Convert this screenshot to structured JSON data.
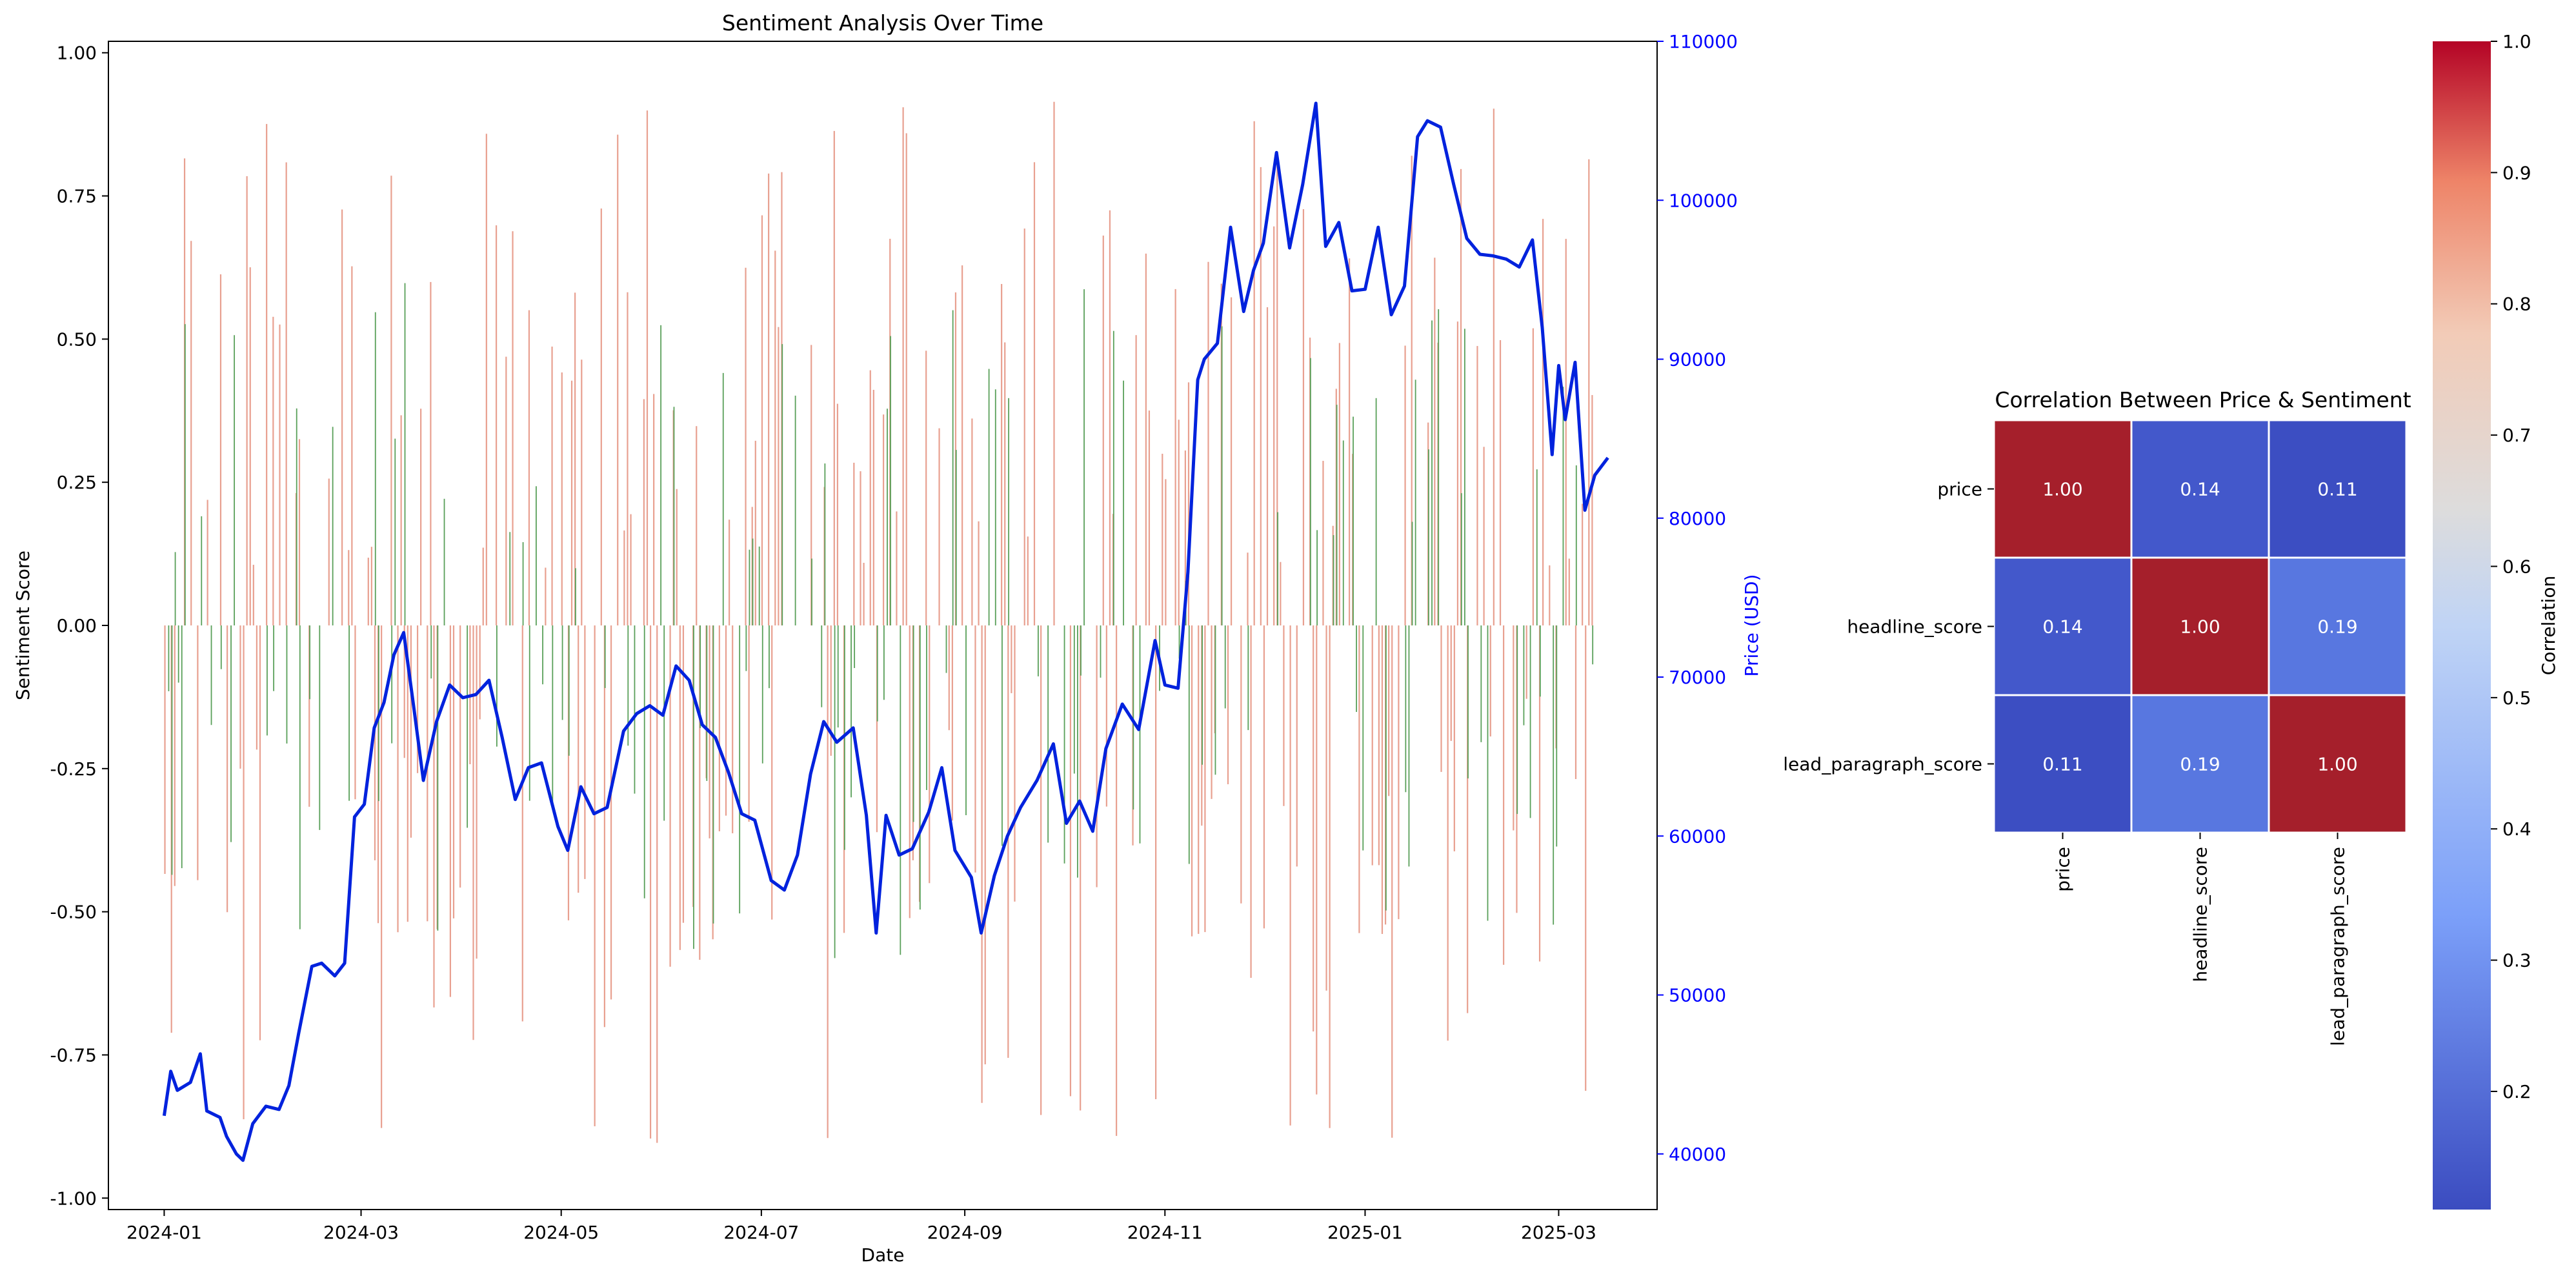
{
  "chart_data": [
    {
      "type": "bar+line",
      "title": "Sentiment Analysis Over Time",
      "xlabel": "Date",
      "ylabel": "Sentiment Score",
      "y2label": "Price (USD)",
      "ylim": [
        -1.02,
        1.02
      ],
      "y2lim": [
        36500,
        110000
      ],
      "x_range": [
        "2023-12-15",
        "2025-03-31"
      ],
      "x_ticks": [
        "2024-01",
        "2024-03",
        "2024-05",
        "2024-07",
        "2024-09",
        "2024-11",
        "2025-01",
        "2025-03"
      ],
      "y_ticks": [
        "-1.00",
        "-0.75",
        "-0.50",
        "-0.25",
        "0.00",
        "0.25",
        "0.50",
        "0.75",
        "1.00"
      ],
      "y2_ticks": [
        "40000",
        "50000",
        "60000",
        "70000",
        "80000",
        "90000",
        "100000",
        "110000"
      ],
      "colors": {
        "headline_bars": "#e8a090",
        "lead_bars": "#5aa05a",
        "price_line": "#0022dd",
        "right_axis": "#0000ff"
      },
      "series": [
        {
          "name": "price",
          "kind": "line",
          "points": [
            [
              "2024-01-01",
              42400
            ],
            [
              "2024-01-03",
              45200
            ],
            [
              "2024-01-05",
              44000
            ],
            [
              "2024-01-09",
              44500
            ],
            [
              "2024-01-12",
              46300
            ],
            [
              "2024-01-14",
              42700
            ],
            [
              "2024-01-18",
              42300
            ],
            [
              "2024-01-20",
              41100
            ],
            [
              "2024-01-23",
              40000
            ],
            [
              "2024-01-25",
              39600
            ],
            [
              "2024-01-28",
              41900
            ],
            [
              "2024-02-01",
              43000
            ],
            [
              "2024-02-05",
              42800
            ],
            [
              "2024-02-08",
              44300
            ],
            [
              "2024-02-11",
              47600
            ],
            [
              "2024-02-15",
              51800
            ],
            [
              "2024-02-18",
              52000
            ],
            [
              "2024-02-22",
              51200
            ],
            [
              "2024-02-25",
              52000
            ],
            [
              "2024-02-28",
              61200
            ],
            [
              "2024-03-02",
              62000
            ],
            [
              "2024-03-05",
              66800
            ],
            [
              "2024-03-08",
              68400
            ],
            [
              "2024-03-11",
              71400
            ],
            [
              "2024-03-14",
              72800
            ],
            [
              "2024-03-17",
              68200
            ],
            [
              "2024-03-20",
              63500
            ],
            [
              "2024-03-24",
              67200
            ],
            [
              "2024-03-28",
              69500
            ],
            [
              "2024-04-01",
              68700
            ],
            [
              "2024-04-05",
              68900
            ],
            [
              "2024-04-09",
              69800
            ],
            [
              "2024-04-13",
              66200
            ],
            [
              "2024-04-17",
              62300
            ],
            [
              "2024-04-21",
              64300
            ],
            [
              "2024-04-25",
              64600
            ],
            [
              "2024-04-30",
              60600
            ],
            [
              "2024-05-03",
              59100
            ],
            [
              "2024-05-07",
              63100
            ],
            [
              "2024-05-11",
              61400
            ],
            [
              "2024-05-15",
              61800
            ],
            [
              "2024-05-20",
              66600
            ],
            [
              "2024-05-24",
              67700
            ],
            [
              "2024-05-28",
              68200
            ],
            [
              "2024-06-01",
              67600
            ],
            [
              "2024-06-05",
              70700
            ],
            [
              "2024-06-09",
              69800
            ],
            [
              "2024-06-13",
              67000
            ],
            [
              "2024-06-17",
              66200
            ],
            [
              "2024-06-21",
              64000
            ],
            [
              "2024-06-25",
              61400
            ],
            [
              "2024-06-29",
              61000
            ],
            [
              "2024-07-04",
              57200
            ],
            [
              "2024-07-08",
              56600
            ],
            [
              "2024-07-12",
              58800
            ],
            [
              "2024-07-16",
              63900
            ],
            [
              "2024-07-20",
              67200
            ],
            [
              "2024-07-24",
              65900
            ],
            [
              "2024-07-29",
              66800
            ],
            [
              "2024-08-02",
              61300
            ],
            [
              "2024-08-05",
              53900
            ],
            [
              "2024-08-08",
              61300
            ],
            [
              "2024-08-12",
              58800
            ],
            [
              "2024-08-16",
              59200
            ],
            [
              "2024-08-21",
              61500
            ],
            [
              "2024-08-25",
              64300
            ],
            [
              "2024-08-29",
              59100
            ],
            [
              "2024-09-03",
              57400
            ],
            [
              "2024-09-06",
              53900
            ],
            [
              "2024-09-10",
              57500
            ],
            [
              "2024-09-14",
              60000
            ],
            [
              "2024-09-18",
              61800
            ],
            [
              "2024-09-23",
              63500
            ],
            [
              "2024-09-28",
              65800
            ],
            [
              "2024-10-02",
              60800
            ],
            [
              "2024-10-06",
              62200
            ],
            [
              "2024-10-10",
              60300
            ],
            [
              "2024-10-14",
              65500
            ],
            [
              "2024-10-19",
              68300
            ],
            [
              "2024-10-24",
              66700
            ],
            [
              "2024-10-29",
              72300
            ],
            [
              "2024-11-01",
              69500
            ],
            [
              "2024-11-05",
              69300
            ],
            [
              "2024-11-08",
              76600
            ],
            [
              "2024-11-11",
              88700
            ],
            [
              "2024-11-13",
              90000
            ],
            [
              "2024-11-17",
              91000
            ],
            [
              "2024-11-21",
              98300
            ],
            [
              "2024-11-25",
              93000
            ],
            [
              "2024-11-28",
              95600
            ],
            [
              "2024-12-01",
              97300
            ],
            [
              "2024-12-05",
              103000
            ],
            [
              "2024-12-09",
              97000
            ],
            [
              "2024-12-13",
              101000
            ],
            [
              "2024-12-17",
              106100
            ],
            [
              "2024-12-20",
              97100
            ],
            [
              "2024-12-24",
              98600
            ],
            [
              "2024-12-28",
              94300
            ],
            [
              "2025-01-01",
              94400
            ],
            [
              "2025-01-05",
              98300
            ],
            [
              "2025-01-09",
              92800
            ],
            [
              "2025-01-13",
              94600
            ],
            [
              "2025-01-17",
              104000
            ],
            [
              "2025-01-20",
              105000
            ],
            [
              "2025-01-24",
              104600
            ],
            [
              "2025-01-28",
              101000
            ],
            [
              "2025-02-01",
              97600
            ],
            [
              "2025-02-05",
              96600
            ],
            [
              "2025-02-09",
              96500
            ],
            [
              "2025-02-13",
              96300
            ],
            [
              "2025-02-17",
              95800
            ],
            [
              "2025-02-21",
              97500
            ],
            [
              "2025-02-24",
              92000
            ],
            [
              "2025-02-27",
              84000
            ],
            [
              "2025-03-01",
              89600
            ],
            [
              "2025-03-03",
              86200
            ],
            [
              "2025-03-06",
              89800
            ],
            [
              "2025-03-09",
              80500
            ],
            [
              "2025-03-12",
              82700
            ],
            [
              "2025-03-16",
              83800
            ]
          ]
        },
        {
          "name": "headline_score",
          "kind": "bar",
          "points": "generated"
        },
        {
          "name": "lead_paragraph_score",
          "kind": "bar",
          "points": "generated"
        }
      ]
    },
    {
      "type": "heatmap",
      "title": "Correlation Between Price & Sentiment",
      "row_labels": [
        "price",
        "headline_score",
        "lead_paragraph_score"
      ],
      "col_labels": [
        "price",
        "headline_score",
        "lead_paragraph_score"
      ],
      "values": [
        [
          1.0,
          0.14,
          0.11
        ],
        [
          0.14,
          1.0,
          0.19
        ],
        [
          0.11,
          0.19,
          1.0
        ]
      ],
      "cell_labels": [
        [
          "1.00",
          "0.14",
          "0.11"
        ],
        [
          "0.14",
          "1.00",
          "0.19"
        ],
        [
          "0.11",
          "0.19",
          "1.00"
        ]
      ],
      "colormap": "coolwarm",
      "colorbar_label": "Correlation",
      "colorbar_range": [
        0.11,
        1.0
      ],
      "colorbar_ticks": [
        "0.2",
        "0.3",
        "0.4",
        "0.5",
        "0.6",
        "0.7",
        "0.8",
        "0.9",
        "1.0"
      ]
    }
  ]
}
